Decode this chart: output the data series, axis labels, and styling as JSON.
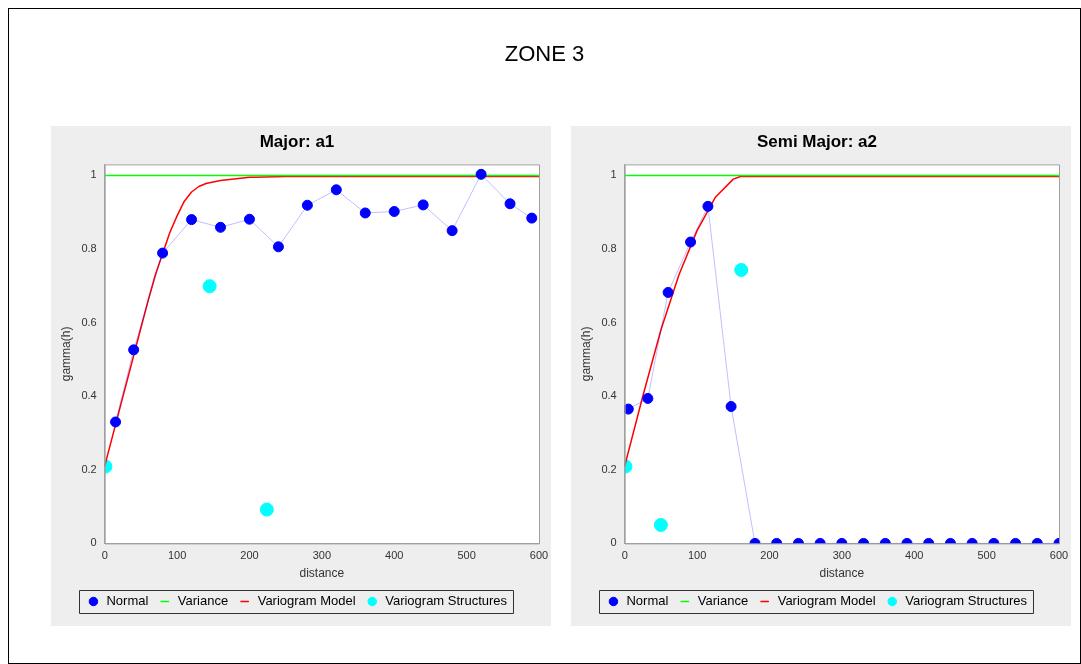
{
  "chart_data": [
    {
      "type": "other",
      "title": "ZONE 3"
    },
    {
      "type": "line",
      "title": "Major: a1",
      "xlabel": "distance",
      "ylabel": "gamma(h)",
      "xlim": [
        0,
        600
      ],
      "xticks": [
        0,
        100,
        200,
        300,
        400,
        500,
        600
      ],
      "ylim": [
        0,
        1.03
      ],
      "yticks": [
        0,
        0.2,
        0.4,
        0.6,
        0.8,
        1
      ],
      "legend": "bottom",
      "series": [
        {
          "name": "Normal",
          "type": "line",
          "marker": "circle",
          "color": "#0000ff",
          "x": [
            15,
            40,
            80,
            120,
            160,
            200,
            240,
            280,
            320,
            360,
            400,
            440,
            480,
            520,
            560,
            590
          ],
          "values": [
            0.33,
            0.526,
            0.789,
            0.88,
            0.859,
            0.881,
            0.806,
            0.919,
            0.961,
            0.898,
            0.902,
            0.92,
            0.85,
            1.003,
            0.923,
            0.884
          ]
        },
        {
          "name": "Variance",
          "type": "line",
          "marker": "none",
          "color": "#00ff00",
          "x": [
            0,
            600
          ],
          "values": [
            1,
            1
          ]
        },
        {
          "name": "Variogram Model",
          "type": "line",
          "marker": "none",
          "color": "#ff0000",
          "x": [
            0,
            20,
            40,
            60,
            70,
            90,
            100,
            110,
            120,
            130,
            140,
            160,
            200,
            250,
            600
          ],
          "values": [
            0.21,
            0.36,
            0.51,
            0.66,
            0.73,
            0.845,
            0.89,
            0.93,
            0.955,
            0.97,
            0.978,
            0.986,
            0.995,
            0.997,
            0.997
          ]
        },
        {
          "name": "Variogram Structures",
          "type": "scatter",
          "marker": "circle",
          "color": "#00ffff",
          "x": [
            1,
            145,
            224
          ],
          "values": [
            0.209,
            0.699,
            0.092
          ]
        }
      ]
    },
    {
      "type": "line",
      "title": "Semi Major: a2",
      "xlabel": "distance",
      "ylabel": "gamma(h)",
      "xlim": [
        0,
        600
      ],
      "xticks": [
        0,
        100,
        200,
        300,
        400,
        500,
        600
      ],
      "ylim": [
        0,
        1.03
      ],
      "yticks": [
        0,
        0.2,
        0.4,
        0.6,
        0.8,
        1
      ],
      "legend": "bottom",
      "series": [
        {
          "name": "Normal",
          "type": "line",
          "marker": "circle",
          "color": "#0000ff",
          "x": [
            5,
            32,
            60,
            91,
            115,
            147,
            180,
            210,
            240,
            270,
            300,
            330,
            360,
            390,
            420,
            450,
            480,
            510,
            540,
            570,
            600
          ],
          "values": [
            0.365,
            0.394,
            0.682,
            0.819,
            0.916,
            0.372,
            0,
            0,
            0,
            0,
            0,
            0,
            0,
            0,
            0,
            0,
            0,
            0,
            0,
            0,
            0
          ]
        },
        {
          "name": "Variance",
          "type": "line",
          "marker": "none",
          "color": "#00ff00",
          "x": [
            0,
            600
          ],
          "values": [
            1,
            1
          ]
        },
        {
          "name": "Variogram Model",
          "type": "line",
          "marker": "none",
          "color": "#ff0000",
          "x": [
            0,
            25,
            50,
            75,
            100,
            125,
            150,
            160,
            600
          ],
          "values": [
            0.21,
            0.4,
            0.58,
            0.73,
            0.85,
            0.94,
            0.99,
            0.997,
            0.997
          ]
        },
        {
          "name": "Variogram Structures",
          "type": "scatter",
          "marker": "circle",
          "color": "#00ffff",
          "x": [
            1,
            50,
            161
          ],
          "values": [
            0.209,
            0.05,
            0.743
          ]
        }
      ]
    }
  ]
}
